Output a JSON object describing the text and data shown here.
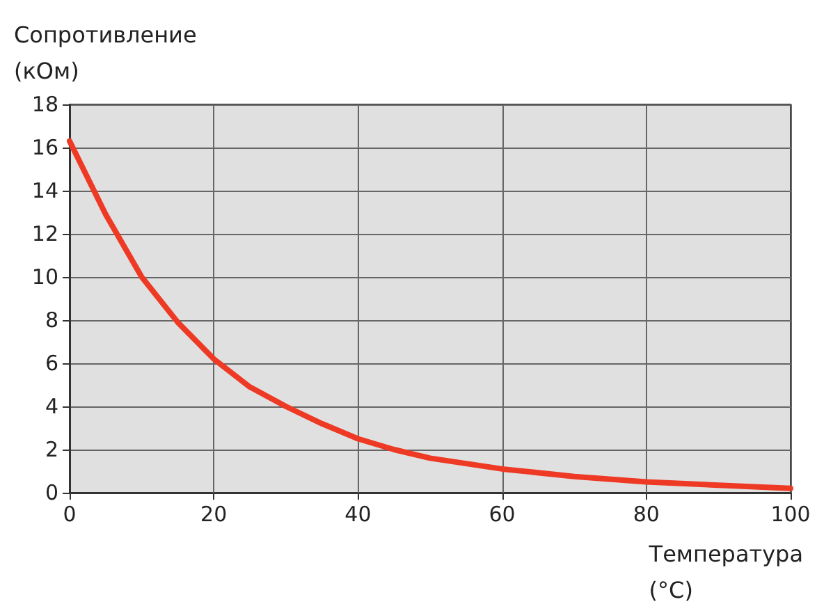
{
  "chart_data": {
    "type": "line",
    "xlabel": "Температура\n(°C)",
    "ylabel": "Сопротивление\n(кОм)",
    "x": [
      0,
      5,
      10,
      15,
      20,
      25,
      30,
      35,
      40,
      45,
      50,
      60,
      70,
      80,
      90,
      100
    ],
    "series": [
      {
        "color": "#ee3a24",
        "values": [
          16.3,
          12.9,
          10.0,
          7.9,
          6.2,
          4.9,
          4.0,
          3.2,
          2.5,
          2.0,
          1.6,
          1.1,
          0.75,
          0.5,
          0.35,
          0.2
        ]
      }
    ],
    "xlim": [
      0,
      100
    ],
    "xticks": [
      0,
      20,
      40,
      60,
      80,
      100
    ],
    "ylim": [
      0,
      18
    ],
    "yticks": [
      0,
      2,
      4,
      6,
      8,
      10,
      12,
      14,
      16,
      18
    ],
    "grid": true,
    "marker": "none",
    "line_style": "solid"
  }
}
